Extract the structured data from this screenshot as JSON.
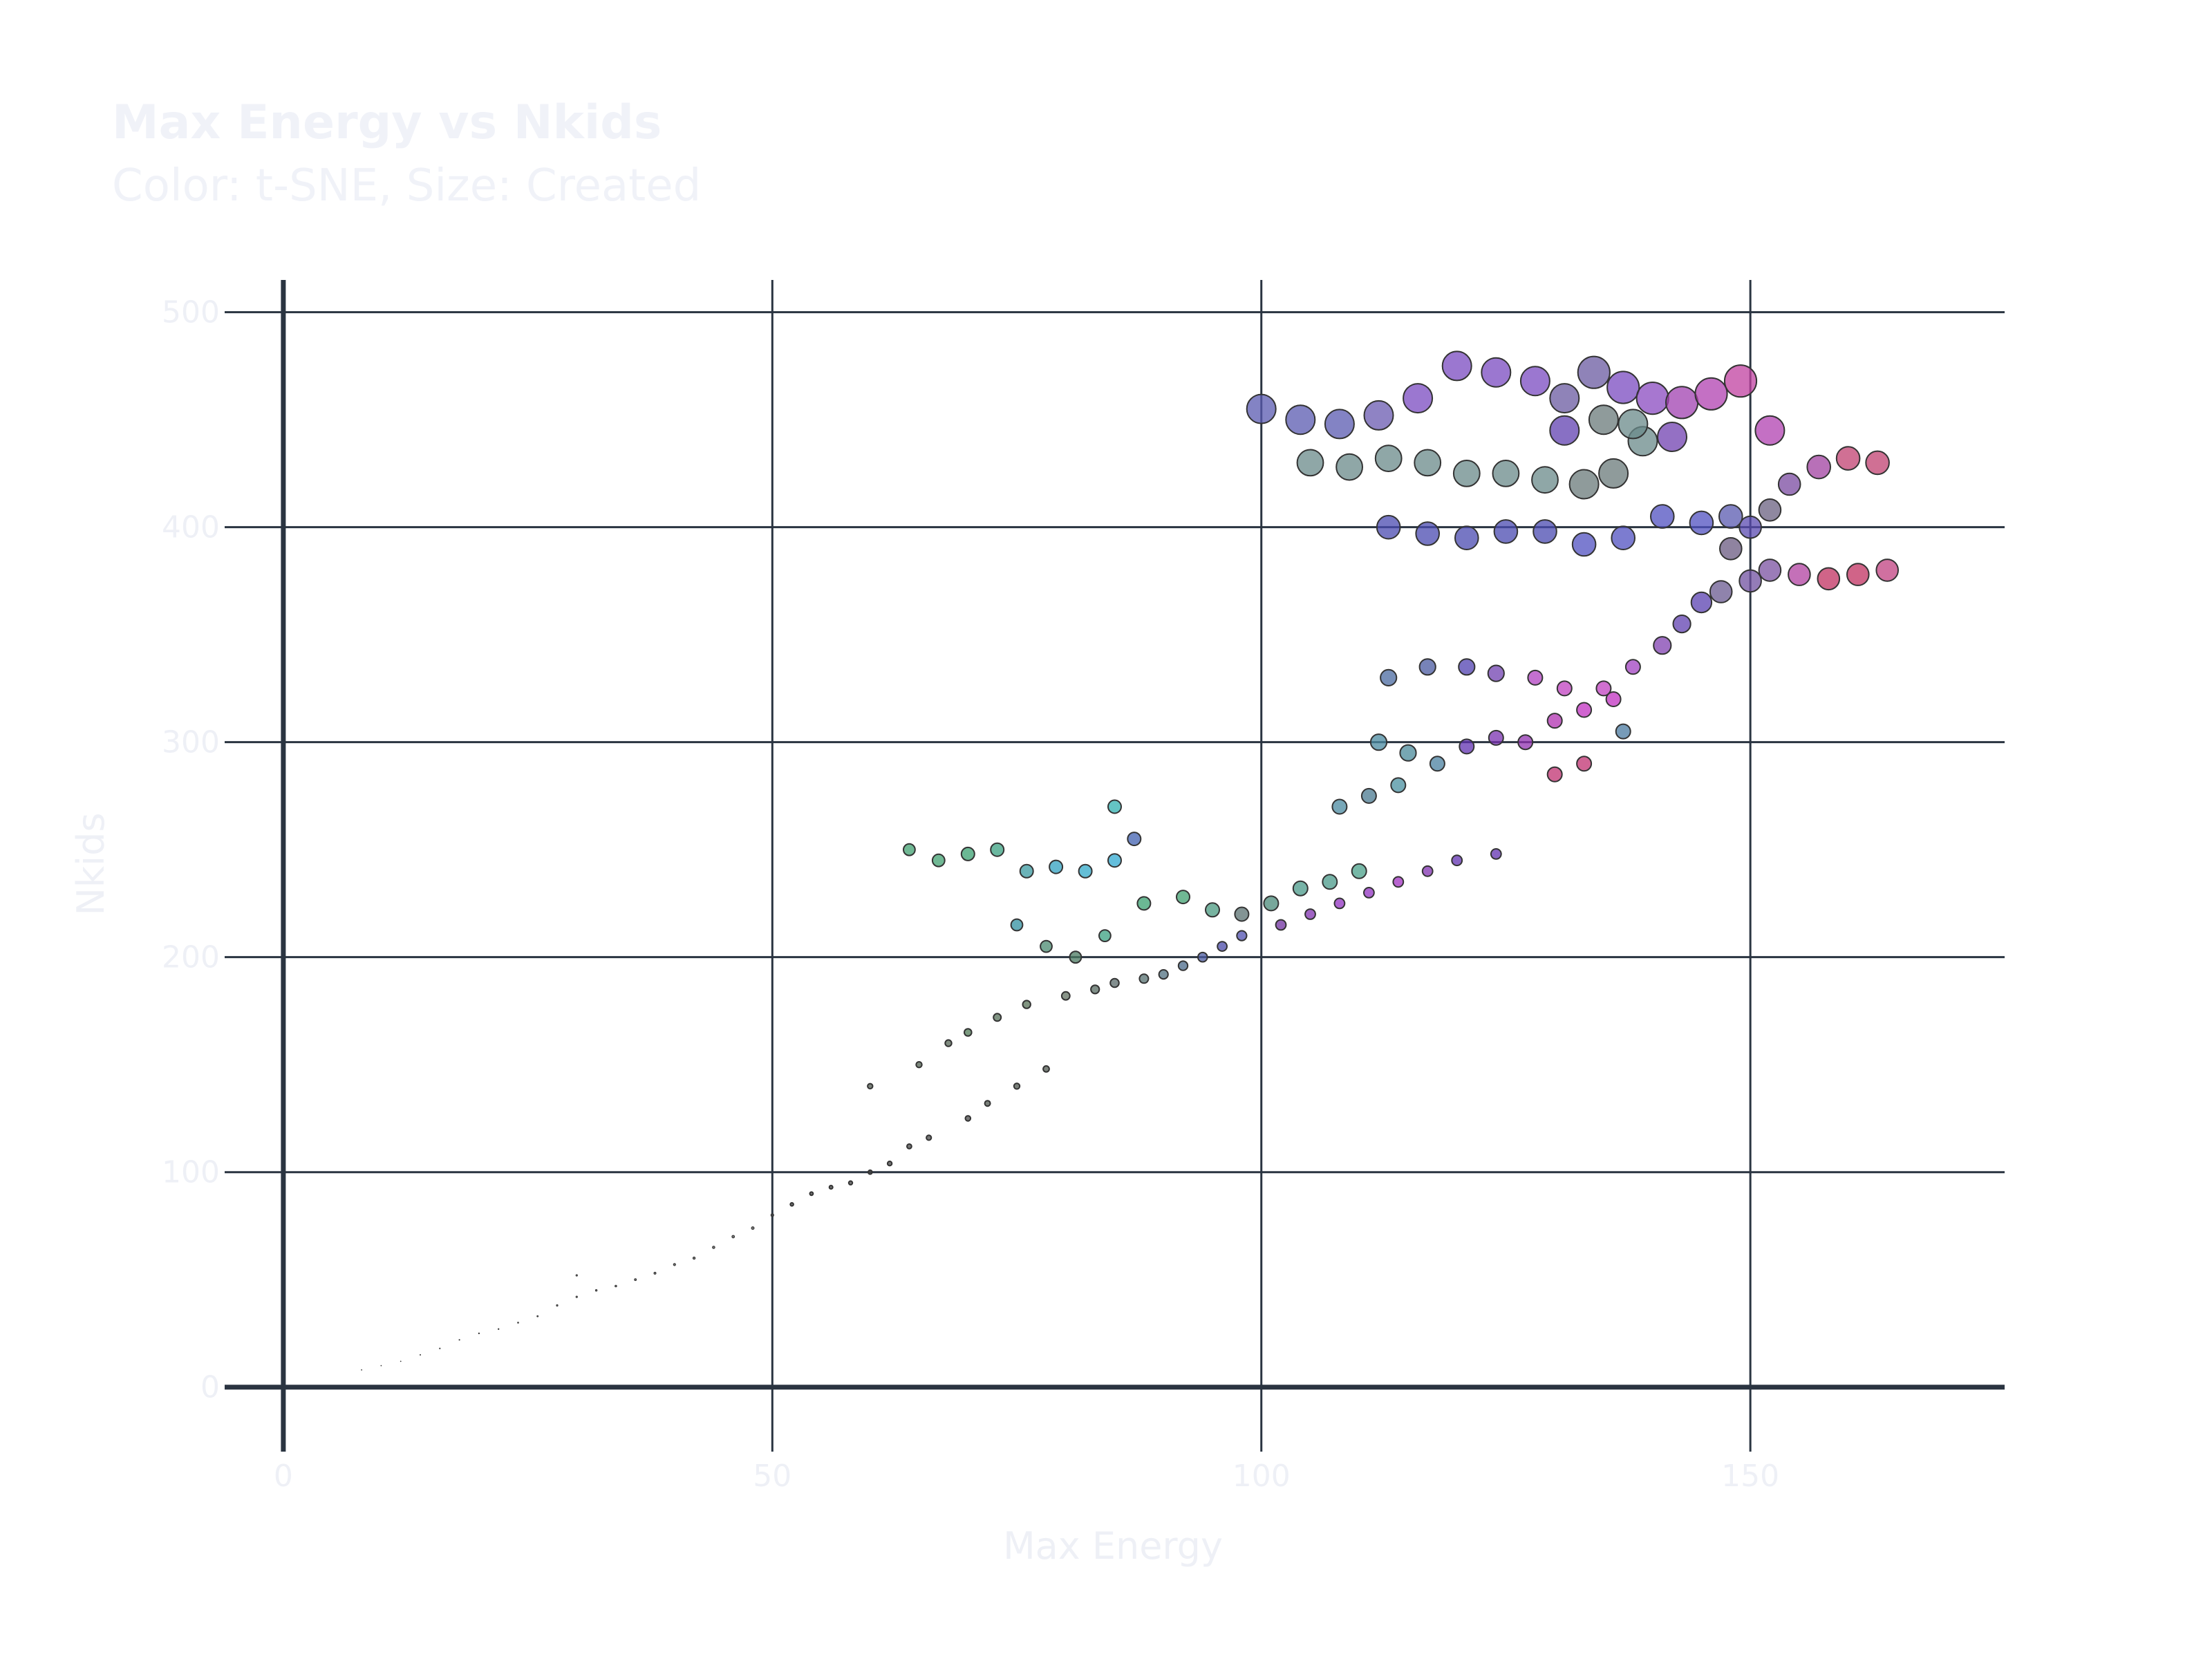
{
  "chart_data": {
    "type": "scatter",
    "title": "Max Energy vs Nkids",
    "subtitle": "Color: t-SNE, Size: Created",
    "xlabel": "Max Energy",
    "ylabel": "Nkids",
    "xlim": [
      -6,
      176
    ],
    "ylim": [
      -30,
      515
    ],
    "xticks": [
      0,
      50,
      100,
      150
    ],
    "yticks": [
      0,
      100,
      200,
      300,
      400,
      500
    ],
    "grid": true,
    "colors": {
      "grid": "#2a3441",
      "text": "#eef0f6",
      "marker_edge": "#333333"
    },
    "series": [
      {
        "points": [
          [
            8,
            8,
            0.4,
            "#888888"
          ],
          [
            10,
            10,
            0.4,
            "#888888"
          ],
          [
            12,
            12,
            0.4,
            "#888888"
          ],
          [
            14,
            15,
            0.5,
            "#777777"
          ],
          [
            16,
            18,
            0.6,
            "#777777"
          ],
          [
            18,
            22,
            0.6,
            "#666666"
          ],
          [
            20,
            25,
            0.7,
            "#666666"
          ],
          [
            22,
            27,
            0.7,
            "#666666"
          ],
          [
            24,
            30,
            0.8,
            "#555555"
          ],
          [
            26,
            33,
            0.9,
            "#555555"
          ],
          [
            28,
            38,
            1.0,
            "#555555"
          ],
          [
            30,
            42,
            1.0,
            "#555555"
          ],
          [
            30,
            52,
            1.0,
            "#555555"
          ],
          [
            32,
            45,
            1.1,
            "#4a4a4a"
          ],
          [
            34,
            47,
            1.2,
            "#4a4a4a"
          ],
          [
            36,
            50,
            1.3,
            "#4a4a4a"
          ],
          [
            38,
            53,
            1.4,
            "#444444"
          ],
          [
            40,
            57,
            1.5,
            "#444444"
          ],
          [
            42,
            60,
            1.6,
            "#444444"
          ],
          [
            44,
            65,
            1.7,
            "#444444"
          ],
          [
            46,
            70,
            1.8,
            "#444444"
          ],
          [
            48,
            74,
            1.9,
            "#444444"
          ],
          [
            50,
            80,
            2.0,
            "#444444"
          ],
          [
            52,
            85,
            2.2,
            "#444444"
          ],
          [
            54,
            90,
            2.3,
            "#444444"
          ],
          [
            56,
            93,
            2.4,
            "#444444"
          ],
          [
            58,
            95,
            2.6,
            "#444444"
          ],
          [
            60,
            100,
            2.8,
            "#444444"
          ],
          [
            62,
            104,
            3.0,
            "#444444"
          ],
          [
            64,
            112,
            3.2,
            "#4a4a4a"
          ],
          [
            66,
            116,
            3.4,
            "#4a4a4a"
          ],
          [
            70,
            125,
            3.6,
            "#4a4a4a"
          ],
          [
            72,
            132,
            3.8,
            "#4d554d"
          ],
          [
            75,
            140,
            4.0,
            "#4d554d"
          ],
          [
            78,
            148,
            4.2,
            "#505a50"
          ],
          [
            60,
            140,
            3.5,
            "#505a50"
          ],
          [
            65,
            150,
            4.0,
            "#506050"
          ],
          [
            68,
            160,
            4.5,
            "#556655"
          ],
          [
            70,
            165,
            5.0,
            "#4f7a55"
          ],
          [
            73,
            172,
            5.2,
            "#55705a"
          ],
          [
            76,
            178,
            5.4,
            "#557055"
          ],
          [
            80,
            182,
            5.6,
            "#607060"
          ],
          [
            83,
            185,
            5.8,
            "#556a60"
          ],
          [
            85,
            188,
            6.0,
            "#5a6a6a"
          ],
          [
            88,
            190,
            6.2,
            "#557070"
          ],
          [
            90,
            192,
            6.3,
            "#507080"
          ],
          [
            92,
            196,
            6.4,
            "#4a6a8a"
          ],
          [
            94,
            200,
            6.5,
            "#4a5aa0"
          ],
          [
            96,
            205,
            6.6,
            "#4a4aa8"
          ],
          [
            98,
            210,
            6.8,
            "#5050b0"
          ],
          [
            64,
            250,
            8.0,
            "#40a070"
          ],
          [
            67,
            245,
            8.5,
            "#40a070"
          ],
          [
            70,
            248,
            9.0,
            "#3aa070"
          ],
          [
            73,
            250,
            9.0,
            "#3aa080"
          ],
          [
            76,
            240,
            9.0,
            "#3a9aa0"
          ],
          [
            79,
            242,
            9.0,
            "#30a0c0"
          ],
          [
            82,
            240,
            9.0,
            "#30a8c8"
          ],
          [
            85,
            245,
            9.0,
            "#30a8d0"
          ],
          [
            87,
            255,
            9.0,
            "#4060b0"
          ],
          [
            85,
            270,
            9.0,
            "#30b0b0"
          ],
          [
            75,
            215,
            8.0,
            "#3090a0"
          ],
          [
            78,
            205,
            8.0,
            "#4a8a70"
          ],
          [
            81,
            200,
            8.0,
            "#4a7a60"
          ],
          [
            84,
            210,
            8.0,
            "#3aa080"
          ],
          [
            88,
            225,
            9.0,
            "#3aa070"
          ],
          [
            92,
            228,
            9.0,
            "#40a070"
          ],
          [
            95,
            222,
            9.5,
            "#4a9a80"
          ],
          [
            98,
            220,
            9.5,
            "#5a7070"
          ],
          [
            101,
            225,
            10,
            "#4a8a7a"
          ],
          [
            104,
            232,
            10,
            "#4a9a8a"
          ],
          [
            107,
            235,
            10,
            "#4a9a8a"
          ],
          [
            110,
            240,
            10,
            "#4aa08a"
          ],
          [
            102,
            215,
            7.0,
            "#7030a0"
          ],
          [
            105,
            220,
            7.0,
            "#8030b0"
          ],
          [
            108,
            225,
            7.0,
            "#9030c0"
          ],
          [
            111,
            230,
            7.0,
            "#9030c0"
          ],
          [
            114,
            235,
            7.0,
            "#a030c0"
          ],
          [
            117,
            240,
            7.0,
            "#8030b0"
          ],
          [
            120,
            245,
            7.0,
            "#6030b0"
          ],
          [
            124,
            248,
            7.0,
            "#6030b0"
          ],
          [
            108,
            270,
            10,
            "#4a8aa0"
          ],
          [
            111,
            275,
            10,
            "#4a7a90"
          ],
          [
            114,
            280,
            10,
            "#4a90a0"
          ],
          [
            112,
            300,
            11,
            "#4a8aa0"
          ],
          [
            115,
            295,
            11,
            "#4a8a9a"
          ],
          [
            118,
            290,
            10,
            "#4a80a0"
          ],
          [
            121,
            298,
            10,
            "#6030b0"
          ],
          [
            124,
            302,
            10,
            "#7a30b0"
          ],
          [
            127,
            300,
            10,
            "#9030b0"
          ],
          [
            130,
            285,
            10,
            "#c03070"
          ],
          [
            133,
            290,
            10,
            "#c03070"
          ],
          [
            130,
            310,
            10,
            "#b030b0"
          ],
          [
            133,
            315,
            10,
            "#c030c0"
          ],
          [
            136,
            320,
            10,
            "#c030c0"
          ],
          [
            137,
            305,
            10,
            "#4a7aa0"
          ],
          [
            113,
            330,
            11,
            "#4a6aa0"
          ],
          [
            117,
            335,
            11,
            "#4a5aa0"
          ],
          [
            121,
            335,
            11,
            "#5040b0"
          ],
          [
            124,
            332,
            11,
            "#7040b0"
          ],
          [
            128,
            330,
            10,
            "#b040c0"
          ],
          [
            131,
            325,
            10,
            "#c040c0"
          ],
          [
            135,
            325,
            10,
            "#c040c0"
          ],
          [
            138,
            335,
            10,
            "#a040c0"
          ],
          [
            141,
            345,
            12,
            "#8040b0"
          ],
          [
            143,
            355,
            12,
            "#6040b0"
          ],
          [
            145,
            365,
            14,
            "#5a40b0"
          ],
          [
            147,
            370,
            15,
            "#6a5a90"
          ],
          [
            150,
            375,
            15,
            "#7050a0"
          ],
          [
            152,
            380,
            15,
            "#7a50a0"
          ],
          [
            155,
            378,
            15,
            "#b040a0"
          ],
          [
            158,
            376,
            15,
            "#c03060"
          ],
          [
            161,
            378,
            15,
            "#c03060"
          ],
          [
            164,
            380,
            15,
            "#c04080"
          ],
          [
            148,
            390,
            15,
            "#6a5a80"
          ],
          [
            150,
            400,
            15,
            "#5a4ab0"
          ],
          [
            152,
            408,
            15,
            "#6a6080"
          ],
          [
            154,
            420,
            15,
            "#7a4aa0"
          ],
          [
            157,
            428,
            16,
            "#a040a0"
          ],
          [
            160,
            432,
            16,
            "#c04070"
          ],
          [
            163,
            430,
            16,
            "#c04070"
          ],
          [
            113,
            400,
            16,
            "#4a4ab0"
          ],
          [
            117,
            397,
            16,
            "#4a4ab0"
          ],
          [
            121,
            395,
            16,
            "#4a4ab0"
          ],
          [
            125,
            398,
            16,
            "#4a4ab0"
          ],
          [
            129,
            398,
            16,
            "#4a4ab0"
          ],
          [
            133,
            392,
            16,
            "#5050c0"
          ],
          [
            137,
            395,
            16,
            "#5050c0"
          ],
          [
            141,
            405,
            16,
            "#5050c0"
          ],
          [
            145,
            402,
            16,
            "#5050c0"
          ],
          [
            148,
            405,
            16,
            "#5a5ab0"
          ],
          [
            105,
            430,
            18,
            "#6a8a8a"
          ],
          [
            109,
            428,
            18,
            "#6a8a8a"
          ],
          [
            113,
            432,
            18,
            "#6a8a8a"
          ],
          [
            117,
            430,
            18,
            "#6a8a8a"
          ],
          [
            121,
            425,
            18,
            "#6a8a8a"
          ],
          [
            125,
            425,
            18,
            "#6a8a8a"
          ],
          [
            129,
            422,
            18,
            "#6a8a8a"
          ],
          [
            133,
            420,
            20,
            "#6a7a7a"
          ],
          [
            136,
            425,
            20,
            "#6a7a7a"
          ],
          [
            139,
            440,
            20,
            "#6a8a8a"
          ],
          [
            100,
            455,
            20,
            "#5a5ab0"
          ],
          [
            104,
            450,
            20,
            "#5a5ab0"
          ],
          [
            108,
            448,
            20,
            "#5a5ab0"
          ],
          [
            112,
            452,
            20,
            "#6a5ab0"
          ],
          [
            116,
            460,
            20,
            "#7a4ac0"
          ],
          [
            120,
            475,
            20,
            "#7a4ac0"
          ],
          [
            124,
            472,
            20,
            "#7a4ac0"
          ],
          [
            128,
            468,
            20,
            "#7a4ac0"
          ],
          [
            131,
            460,
            20,
            "#6a5aa0"
          ],
          [
            134,
            472,
            22,
            "#6a5aa0"
          ],
          [
            137,
            465,
            22,
            "#7a4ac0"
          ],
          [
            140,
            460,
            22,
            "#8a4ac0"
          ],
          [
            143,
            458,
            22,
            "#a040b0"
          ],
          [
            146,
            462,
            22,
            "#b040b0"
          ],
          [
            149,
            468,
            22,
            "#c040a0"
          ],
          [
            152,
            445,
            20,
            "#b040b0"
          ],
          [
            131,
            445,
            20,
            "#6040b0"
          ],
          [
            135,
            450,
            20,
            "#6a7a7a"
          ],
          [
            138,
            448,
            20,
            "#6a8a8a"
          ],
          [
            142,
            442,
            20,
            "#7040b0"
          ]
        ]
      }
    ]
  }
}
